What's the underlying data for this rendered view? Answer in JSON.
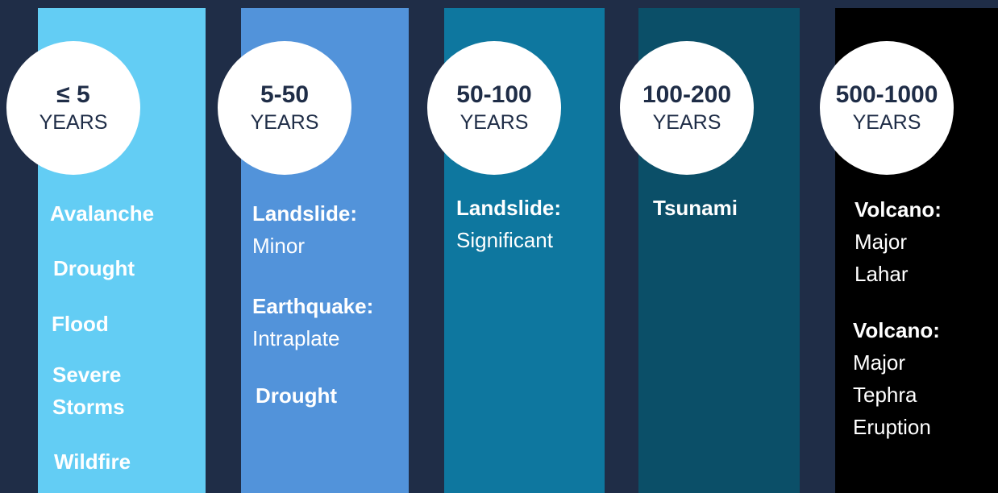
{
  "colors": {
    "background": "#1f2d47",
    "col1": "#63cdf4",
    "col2": "#5293da",
    "col3": "#0e779f",
    "col4": "#0b4f68",
    "col5": "#000000"
  },
  "columns": [
    {
      "range": "≤ 5",
      "unit": "YEARS",
      "items": [
        "Avalanche",
        "Drought",
        "Flood",
        "Severe Storms",
        "Wildfire"
      ]
    },
    {
      "range": "5-50",
      "unit": "YEARS",
      "items": [
        {
          "label": "Landslide:",
          "detail": "Minor"
        },
        {
          "label": "Earthquake:",
          "detail": "Intraplate"
        },
        {
          "label": "Drought",
          "detail": ""
        }
      ]
    },
    {
      "range": "50-100",
      "unit": "YEARS",
      "items": [
        {
          "label": "Landslide:",
          "detail": "Significant"
        }
      ]
    },
    {
      "range": "100-200",
      "unit": "YEARS",
      "items": [
        {
          "label": "Tsunami",
          "detail": ""
        }
      ]
    },
    {
      "range": "500-1000",
      "unit": "YEARS",
      "items": [
        {
          "label": "Volcano:",
          "detail": "Major Lahar"
        },
        {
          "label": "Volcano:",
          "detail": "Major Tephra Eruption"
        }
      ]
    }
  ]
}
